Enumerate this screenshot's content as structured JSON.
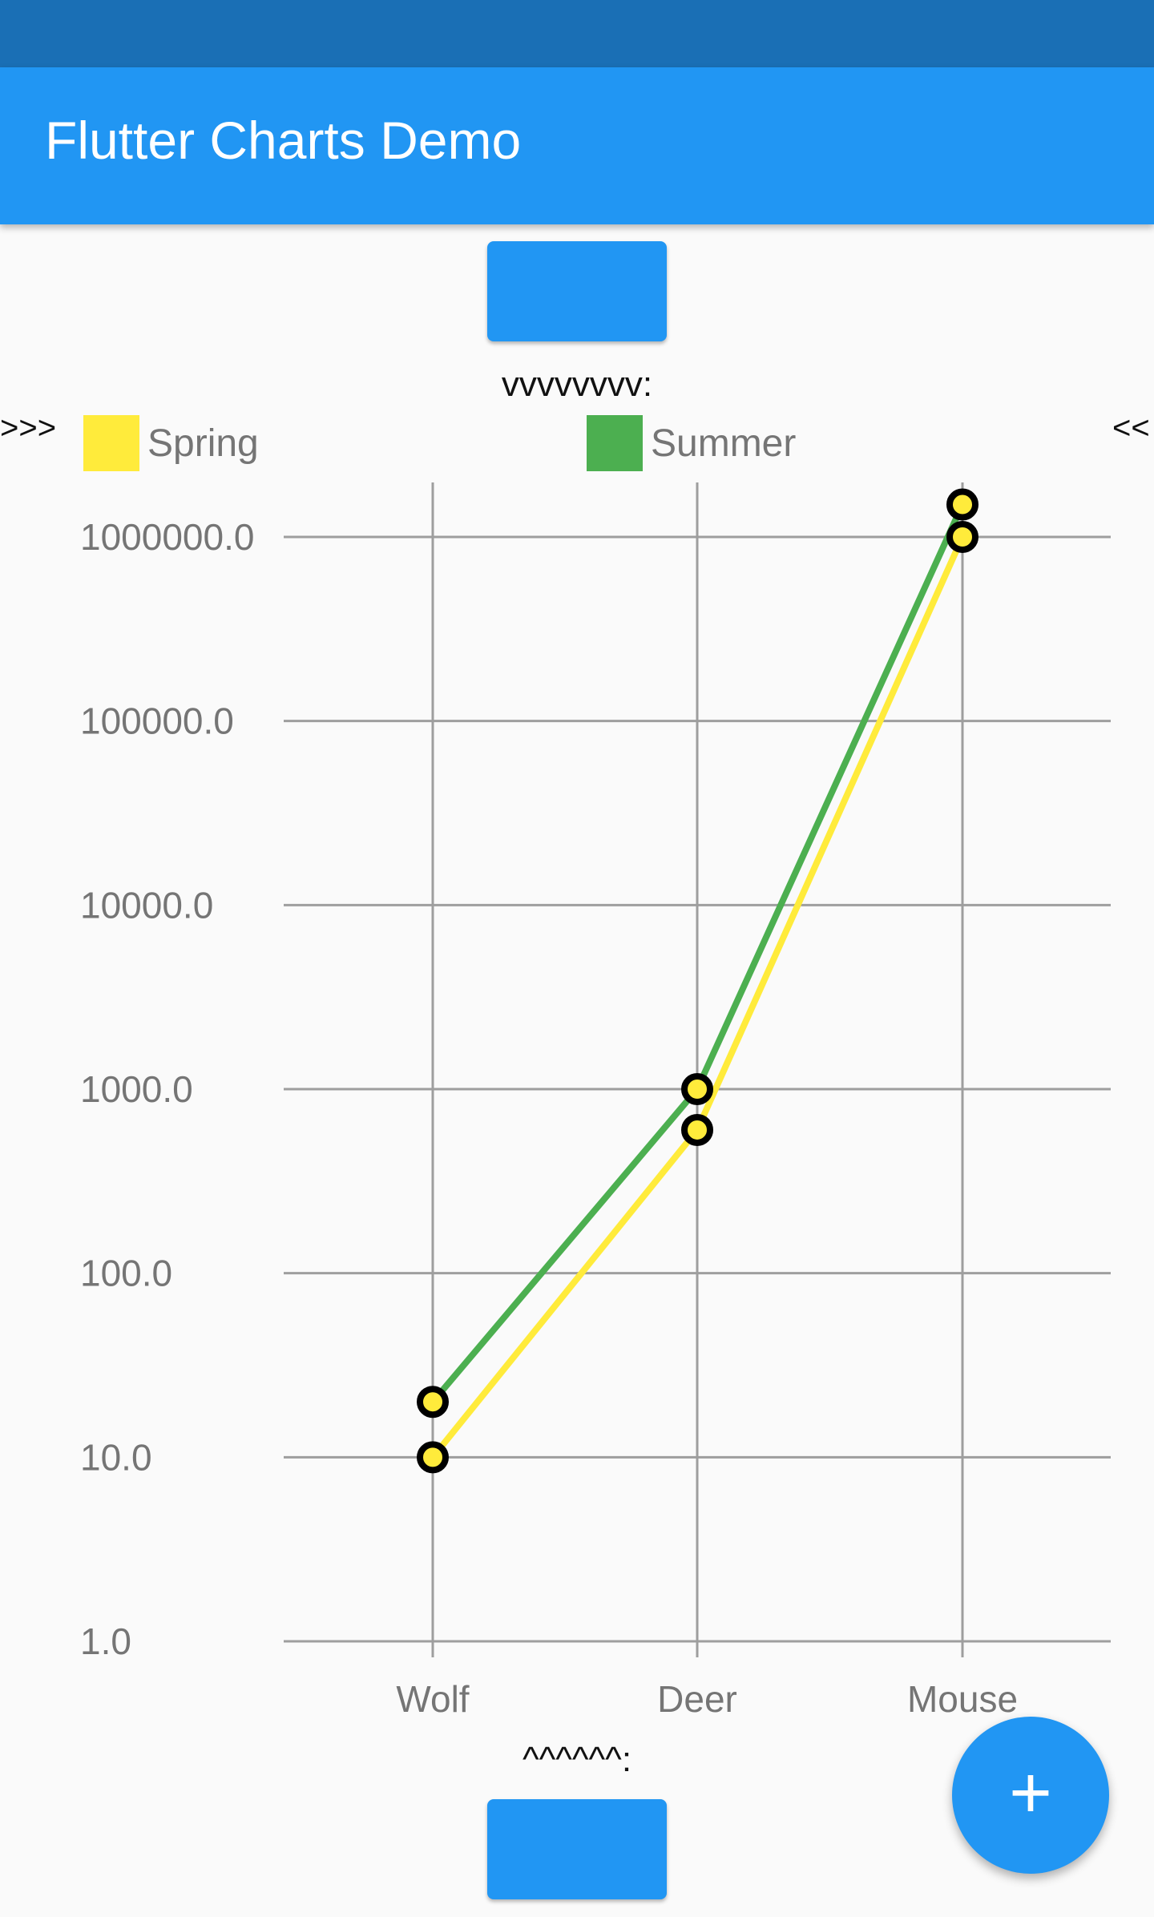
{
  "app": {
    "title": "Flutter Charts Demo",
    "status_bar_color": "#1a6fb5",
    "app_bar_color": "#2196f3"
  },
  "controls": {
    "top_label": "vvvvvvvv:",
    "bottom_label": "^^^^^^:",
    "left_arrows": ">>>",
    "right_arrows": "<<",
    "button_color": "#2196f3",
    "fab_icon": "plus-icon",
    "fab_glyph": "+"
  },
  "chart_data": {
    "type": "line",
    "categories": [
      "Wolf",
      "Deer",
      "Mouse"
    ],
    "y_scale": "log10",
    "ylim": [
      1,
      1000000
    ],
    "y_ticks": [
      "1.0",
      "10.0",
      "100.0",
      "1000.0",
      "10000.0",
      "100000.0",
      "1000000.0"
    ],
    "grid": true,
    "legend_position": "top",
    "series": [
      {
        "name": "Spring",
        "color": "#ffeb3b",
        "values": [
          10,
          600,
          1000000
        ]
      },
      {
        "name": "Summer",
        "color": "#4caf50",
        "values": [
          20,
          1000,
          1500000
        ]
      }
    ],
    "point_style": {
      "fill": "#ffeb3b",
      "stroke": "#000000"
    }
  }
}
